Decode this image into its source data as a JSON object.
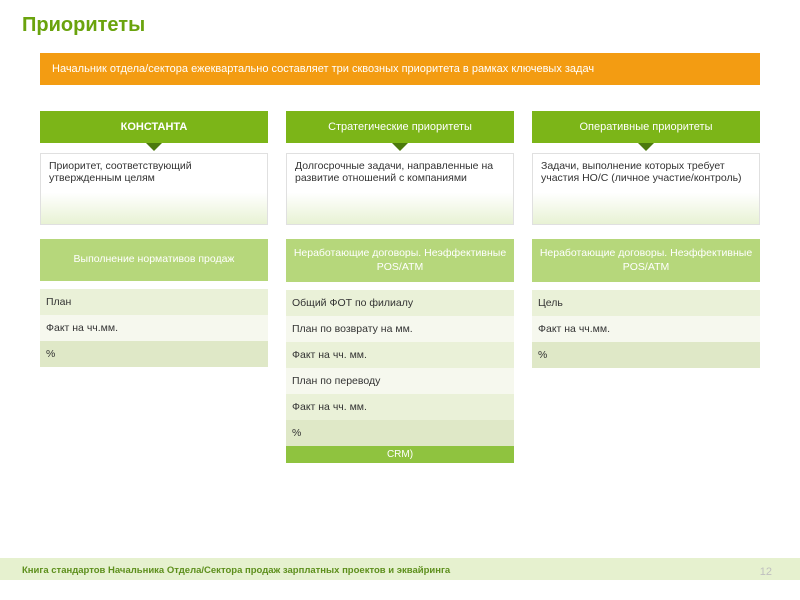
{
  "title": "Приоритеты",
  "banner": "Начальник отдела/сектора ежеквартально составляет три сквозных приоритета в рамках ключевых задач",
  "columns": [
    {
      "header": "КОНСТАНТА",
      "bold": true,
      "desc": "Приоритет, соответствующий утвержденным целям",
      "sub_header": "Выполнение нормативов продаж",
      "rows": [
        {
          "label": "План"
        },
        {
          "label": "Факт на чч.мм."
        },
        {
          "label": "%"
        }
      ]
    },
    {
      "header": "Стратегические приоритеты",
      "bold": false,
      "desc": "Долгосрочные задачи, направленные\nна развитие отношений с компаниями",
      "sub_header": "Неработающие  договоры.\nНеэффективные POS/ATM",
      "rows": [
        {
          "label": "Общий ФОТ по филиалу"
        },
        {
          "label": "План по возврату на мм."
        },
        {
          "label": "Факт на чч. мм."
        },
        {
          "label": "План по переводу"
        },
        {
          "label": "Факт на чч. мм."
        },
        {
          "label": "%"
        }
      ],
      "crm": "CRM)"
    },
    {
      "header": "Оперативные приоритеты",
      "bold": false,
      "desc": "Задачи, выполнение которых требует участия НО/С (личное участие/контроль)",
      "sub_header": "Неработающие договоры.\nНеэффективные POS/ATM",
      "rows": [
        {
          "label": "Цель"
        },
        {
          "label": "Факт на чч.мм."
        },
        {
          "label": "%"
        }
      ]
    }
  ],
  "footer": "Книга стандартов Начальника Отдела/Сектора продаж зарплатных проектов и эквайринга",
  "page_number": "12",
  "colors": {
    "title": "#6aa30d",
    "banner_bg": "#f39c12",
    "header_bg": "#7cb518",
    "sub_header_bg": "#b6d77b",
    "row_shade_a": "#eaf1d8",
    "row_shade_b": "#f6f8ee",
    "row_shade_c": "#dfe8c7",
    "footer_bar": "#e6f1cf",
    "footer_text": "#5d8f1c",
    "page_number": "#bfbfbf"
  }
}
